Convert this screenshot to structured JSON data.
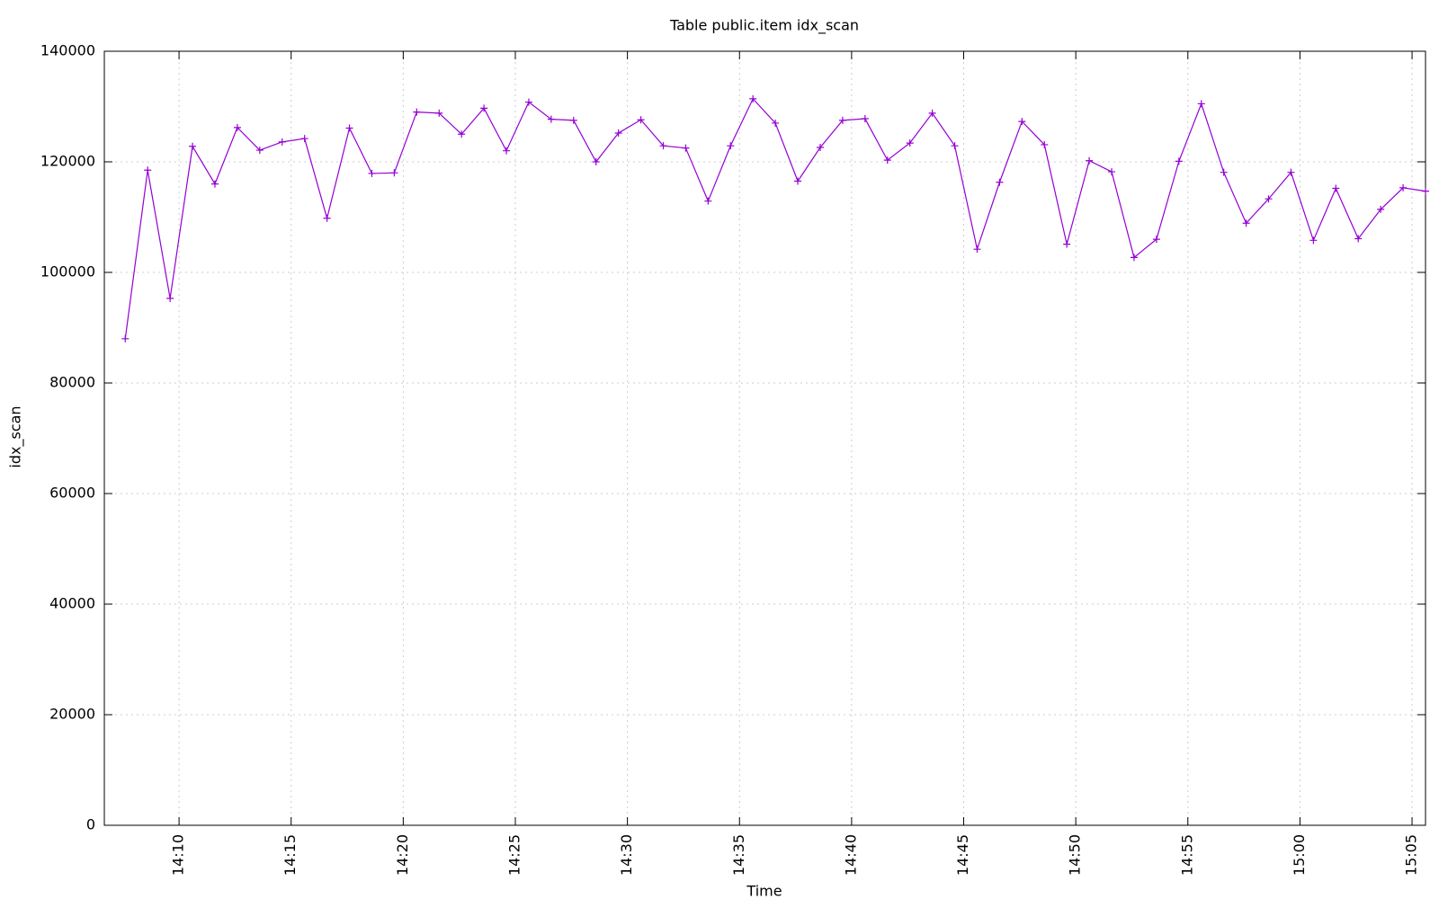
{
  "chart_data": {
    "type": "line",
    "title": "Table public.item idx_scan",
    "xlabel": "Time",
    "ylabel": "idx_scan",
    "color": "#9400d3",
    "grid": true,
    "x": [
      "14:07:36",
      "14:08:36",
      "14:09:36",
      "14:10:36",
      "14:11:36",
      "14:12:36",
      "14:13:36",
      "14:14:36",
      "14:15:36",
      "14:16:36",
      "14:17:36",
      "14:18:36",
      "14:19:36",
      "14:20:36",
      "14:21:36",
      "14:22:36",
      "14:23:36",
      "14:24:36",
      "14:25:36",
      "14:26:36",
      "14:27:36",
      "14:28:36",
      "14:29:36",
      "14:30:36",
      "14:31:36",
      "14:32:36",
      "14:33:36",
      "14:34:36",
      "14:35:36",
      "14:36:36",
      "14:37:36",
      "14:38:36",
      "14:39:36",
      "14:40:36",
      "14:41:36",
      "14:42:36",
      "14:43:36",
      "14:44:36",
      "14:45:36",
      "14:46:36",
      "14:47:36",
      "14:48:36",
      "14:49:36",
      "14:50:36",
      "14:51:36",
      "14:52:36",
      "14:53:36",
      "14:54:36",
      "14:55:36",
      "14:56:36",
      "14:57:36",
      "14:58:36",
      "14:59:36",
      "15:00:36",
      "15:01:36",
      "15:02:36",
      "15:03:36",
      "15:04:36",
      "15:05:36"
    ],
    "values": [
      88000,
      118500,
      95300,
      122800,
      116000,
      126200,
      122100,
      123600,
      124200,
      109800,
      126100,
      117900,
      118000,
      129000,
      128800,
      125000,
      129700,
      122000,
      130800,
      127700,
      127500,
      120000,
      125200,
      127600,
      122900,
      122500,
      112900,
      122900,
      131400,
      127000,
      116500,
      122600,
      127500,
      127800,
      120300,
      123400,
      128800,
      122900,
      104200,
      116300,
      127300,
      123100,
      105100,
      120200,
      118200,
      102700,
      106000,
      120100,
      130500,
      118100,
      108900,
      113300,
      118100,
      105800,
      115200,
      106100,
      111400,
      115300,
      114700
    ],
    "xlim": [
      "14:06:40",
      "15:05:36"
    ],
    "xticks": [
      "14:10",
      "14:15",
      "14:20",
      "14:25",
      "14:30",
      "14:35",
      "14:40",
      "14:45",
      "14:50",
      "14:55",
      "15:00",
      "15:05"
    ],
    "ylim": [
      0,
      140000
    ],
    "yticks": [
      0,
      20000,
      40000,
      60000,
      80000,
      100000,
      120000,
      140000
    ]
  }
}
